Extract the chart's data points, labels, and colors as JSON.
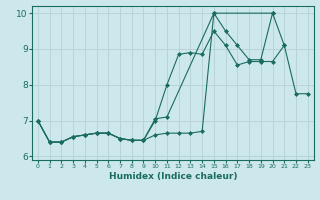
{
  "title": "",
  "xlabel": "Humidex (Indice chaleur)",
  "ylabel": "",
  "bg_color": "#cce8ec",
  "grid_color": "#b8d4d8",
  "line_color": "#1a6b60",
  "xlim": [
    -0.5,
    23.5
  ],
  "ylim": [
    5.9,
    10.2
  ],
  "yticks": [
    6,
    7,
    8,
    9,
    10
  ],
  "xticks": [
    0,
    1,
    2,
    3,
    4,
    5,
    6,
    7,
    8,
    9,
    10,
    11,
    12,
    13,
    14,
    15,
    16,
    17,
    18,
    19,
    20,
    21,
    22,
    23
  ],
  "series": [
    {
      "x": [
        0,
        1,
        2,
        3,
        4,
        5,
        6,
        7,
        8,
        9,
        10,
        11,
        12,
        13,
        14,
        15,
        16,
        17,
        18,
        19,
        20,
        21
      ],
      "y": [
        7.0,
        6.4,
        6.4,
        6.55,
        6.6,
        6.65,
        6.65,
        6.5,
        6.45,
        6.45,
        6.6,
        6.65,
        6.65,
        6.65,
        6.7,
        10.0,
        9.5,
        9.1,
        8.7,
        8.7,
        10.0,
        9.1
      ]
    },
    {
      "x": [
        0,
        1,
        2,
        3,
        4,
        5,
        6,
        7,
        8,
        9,
        10,
        11,
        15,
        20
      ],
      "y": [
        7.0,
        6.4,
        6.4,
        6.55,
        6.6,
        6.65,
        6.65,
        6.5,
        6.45,
        6.45,
        7.05,
        7.1,
        10.0,
        10.0
      ]
    },
    {
      "x": [
        0,
        1,
        2,
        3,
        4,
        5,
        6,
        7,
        8,
        9,
        10,
        11,
        12,
        13,
        14,
        15,
        16,
        17,
        18,
        19,
        20,
        21,
        22,
        23
      ],
      "y": [
        7.0,
        6.4,
        6.4,
        6.55,
        6.6,
        6.65,
        6.65,
        6.5,
        6.45,
        6.45,
        7.0,
        8.0,
        8.85,
        8.9,
        8.85,
        9.5,
        9.1,
        8.55,
        8.65,
        8.65,
        8.65,
        9.1,
        7.75,
        7.75
      ]
    }
  ]
}
